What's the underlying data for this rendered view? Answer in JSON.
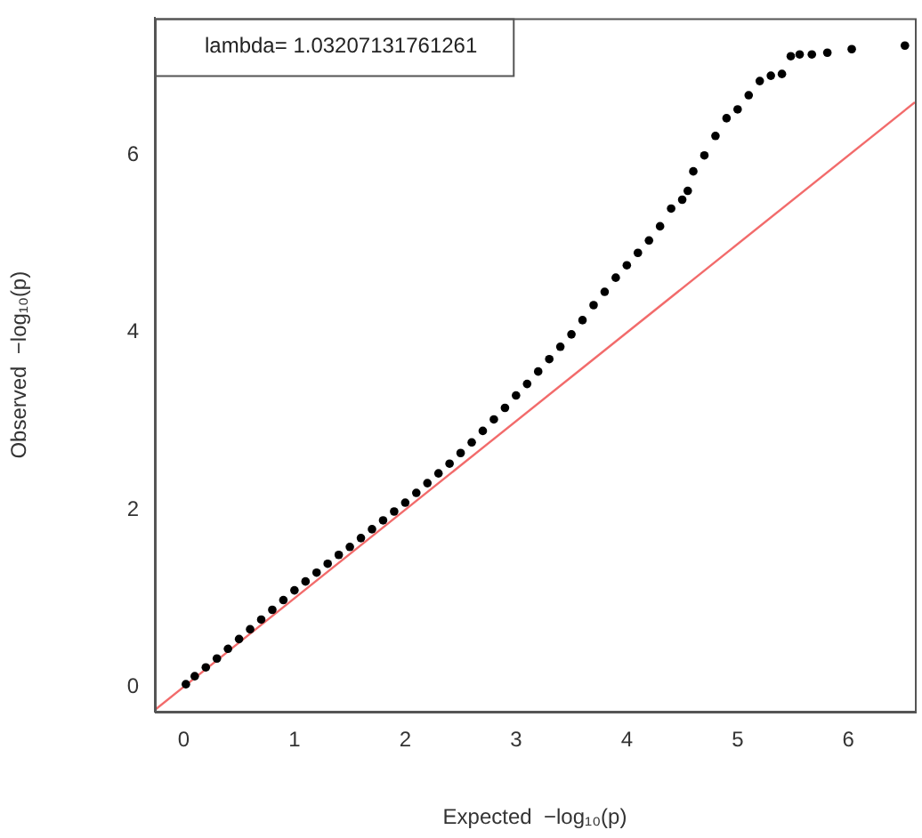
{
  "chart_data": {
    "type": "scatter",
    "xlabel": "Expected  −log₁₀(p)",
    "ylabel": "Observed  −log₁₀(p)",
    "annotations": [
      "lambda= 1.03207131761261"
    ],
    "xlim": [
      -0.26,
      6.6
    ],
    "ylim": [
      -0.28,
      7.55
    ],
    "xticks": [
      0,
      1,
      2,
      3,
      4,
      5,
      6
    ],
    "yticks": [
      0,
      2,
      4,
      6
    ],
    "grid": false,
    "legend": false,
    "series": [
      {
        "marker": "circle",
        "color": "#000000",
        "x": [
          0.02,
          0.1,
          0.2,
          0.3,
          0.4,
          0.5,
          0.6,
          0.7,
          0.8,
          0.9,
          1.0,
          1.1,
          1.2,
          1.3,
          1.4,
          1.5,
          1.6,
          1.7,
          1.8,
          1.9,
          2.0,
          2.1,
          2.2,
          2.3,
          2.4,
          2.5,
          2.6,
          2.7,
          2.8,
          2.9,
          3.0,
          3.1,
          3.2,
          3.3,
          3.4,
          3.5,
          3.6,
          3.7,
          3.8,
          3.9,
          4.0,
          4.1,
          4.2,
          4.3,
          4.4,
          4.5,
          4.55,
          4.6,
          4.7,
          4.8,
          4.9,
          5.0,
          5.1,
          5.2,
          5.3,
          5.4,
          5.48,
          5.56,
          5.67,
          5.81,
          6.03,
          6.51
        ],
        "values": [
          0.03,
          0.12,
          0.22,
          0.32,
          0.43,
          0.54,
          0.65,
          0.76,
          0.87,
          0.98,
          1.09,
          1.19,
          1.29,
          1.39,
          1.49,
          1.58,
          1.68,
          1.78,
          1.88,
          1.98,
          2.08,
          2.19,
          2.3,
          2.41,
          2.52,
          2.64,
          2.76,
          2.89,
          3.02,
          3.15,
          3.29,
          3.42,
          3.56,
          3.7,
          3.84,
          3.98,
          4.14,
          4.31,
          4.46,
          4.62,
          4.76,
          4.9,
          5.04,
          5.2,
          5.4,
          5.5,
          5.6,
          5.82,
          6.0,
          6.22,
          6.42,
          6.52,
          6.68,
          6.84,
          6.9,
          6.92,
          7.12,
          7.14,
          7.14,
          7.16,
          7.2,
          7.24
        ]
      },
      {
        "type": "line",
        "marker": "none",
        "color": "#f26b6b",
        "x": [
          -0.26,
          6.6
        ],
        "values": [
          -0.26,
          6.6
        ]
      }
    ]
  }
}
